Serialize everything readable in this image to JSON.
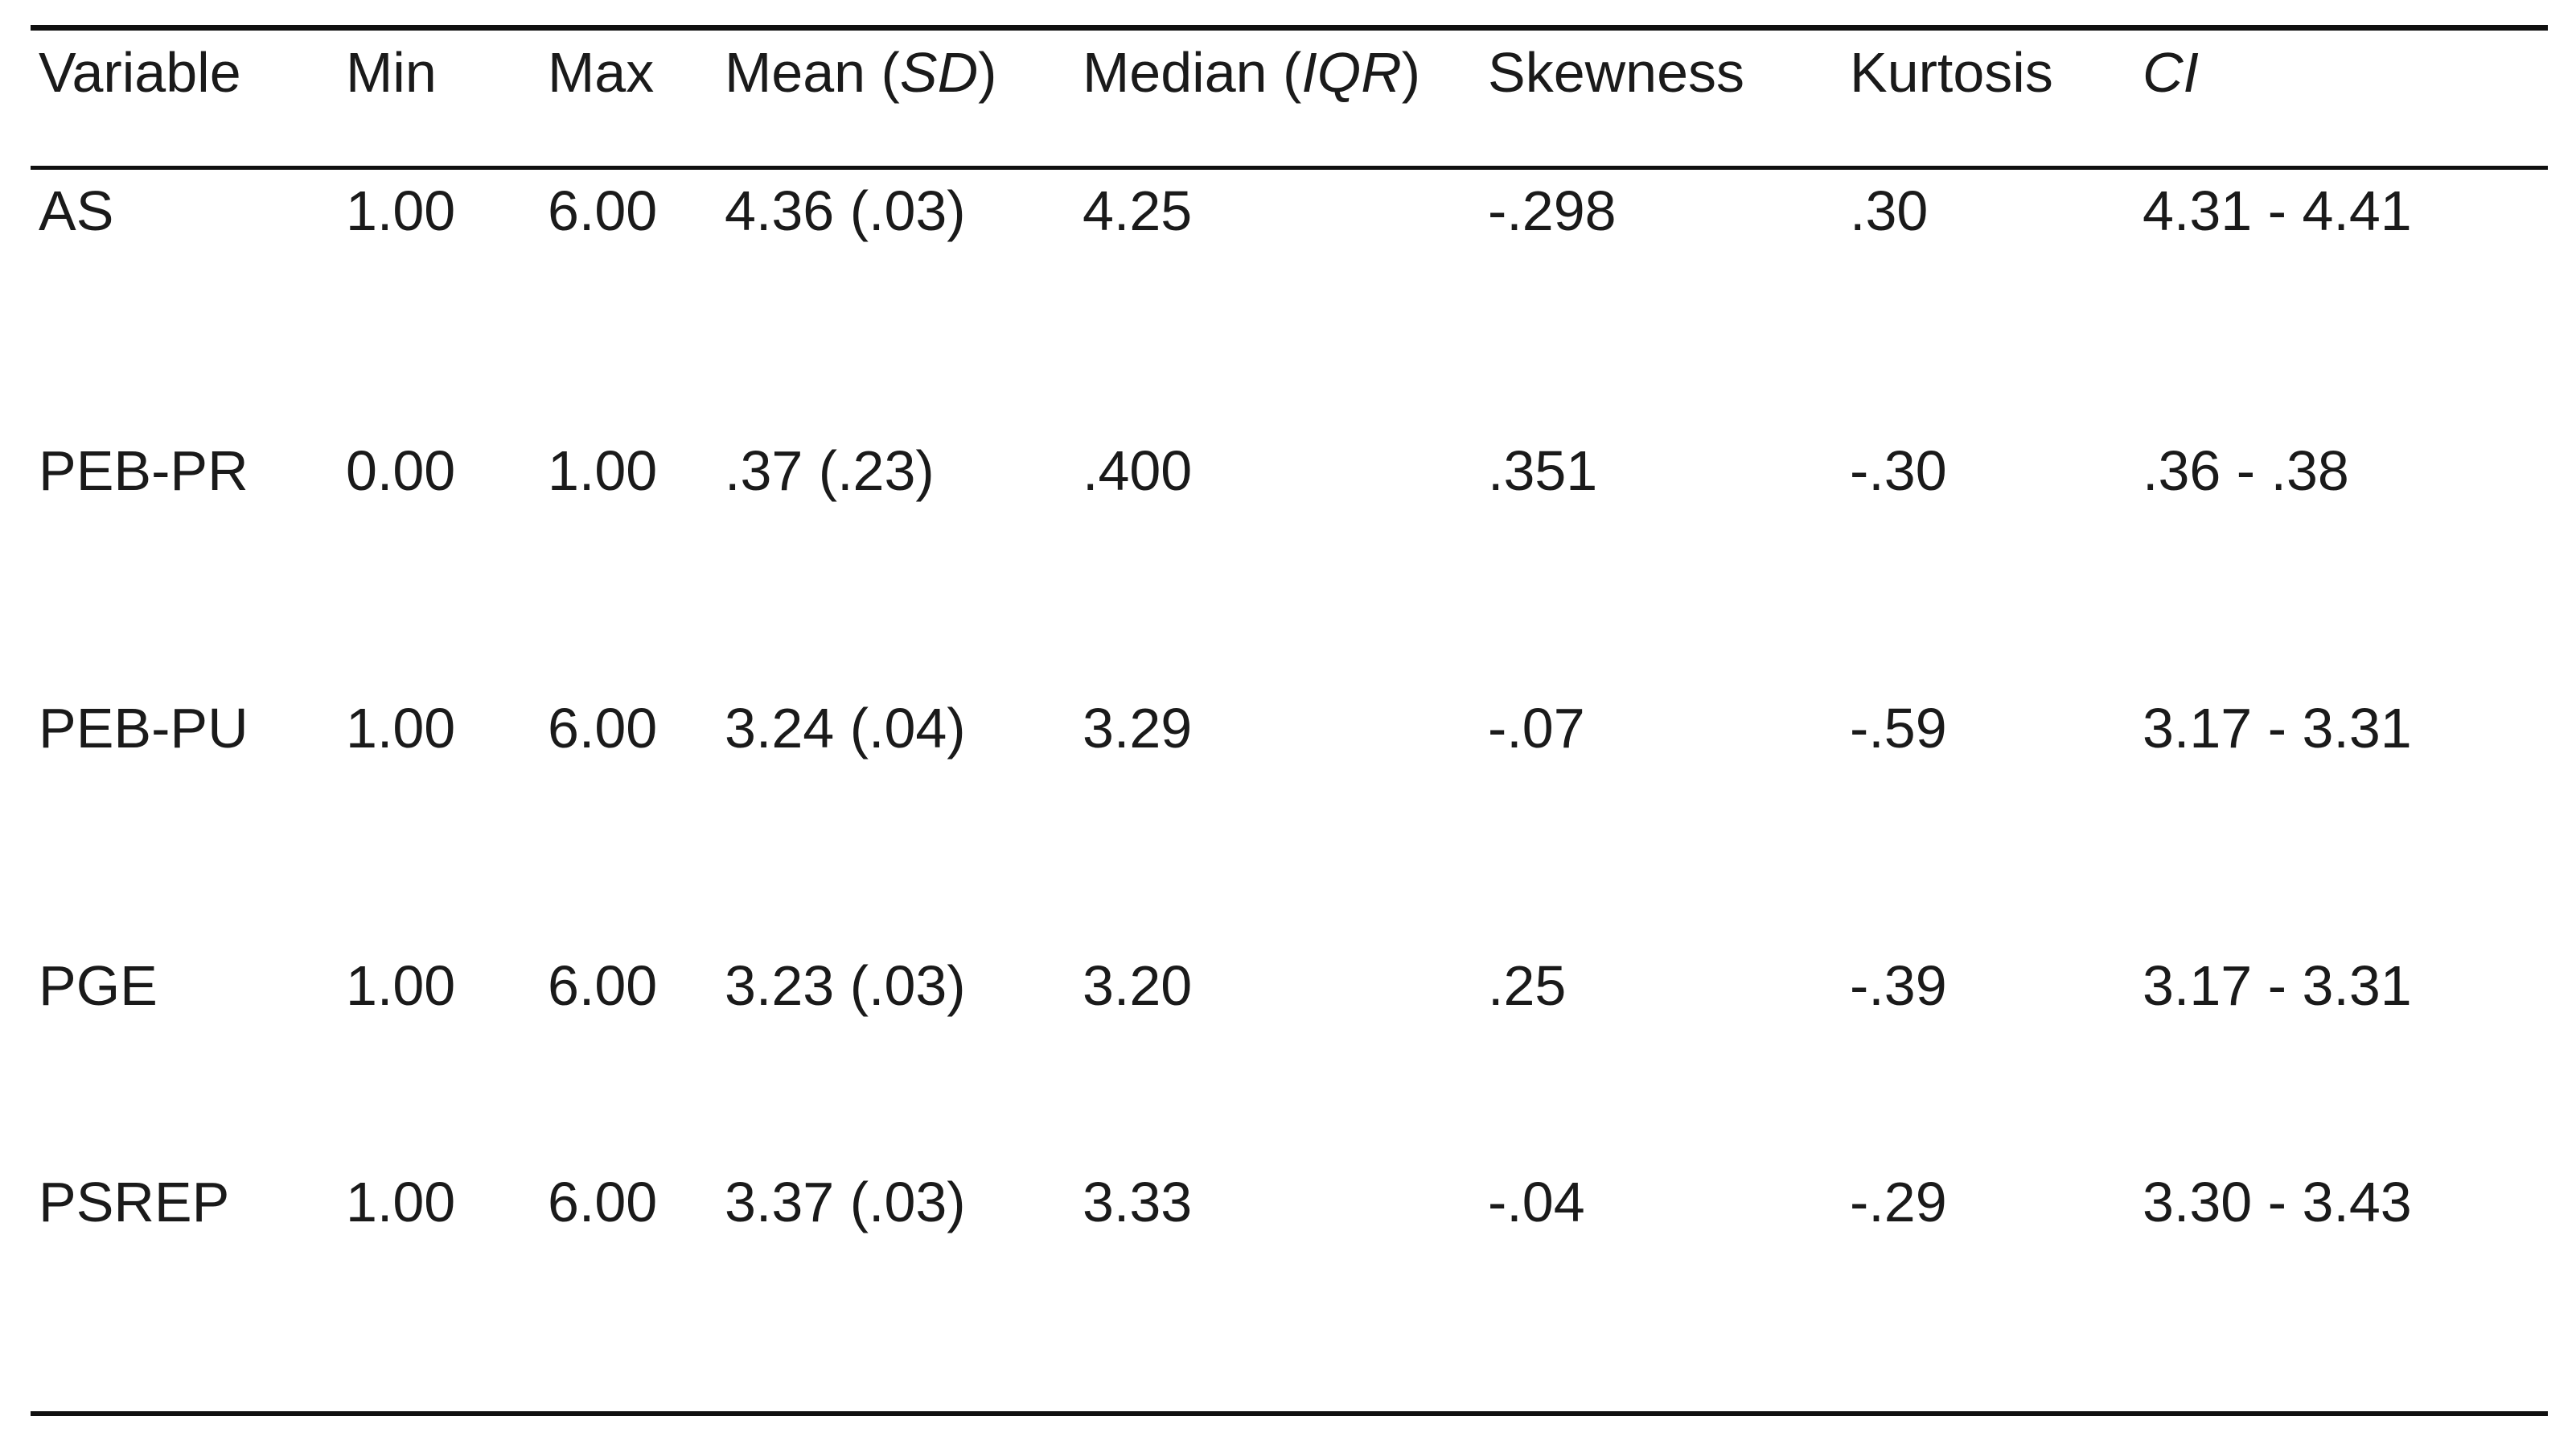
{
  "colors": {
    "background": "#ffffff",
    "text": "#1a1a1a",
    "rule": "#101010"
  },
  "table": {
    "header": {
      "variable": "Variable",
      "min": "Min",
      "max": "Max",
      "mean_prefix": "Mean (",
      "mean_italic": "SD",
      "mean_suffix": ")",
      "median_prefix": "Median (",
      "median_italic": "IQR",
      "median_suffix": ")",
      "skewness": "Skewness",
      "kurtosis": "Kurtosis",
      "ci": "CI"
    },
    "rows": [
      {
        "variable": "AS",
        "min": "1.00",
        "max": "6.00",
        "mean_sd": "4.36 (.03)",
        "median_iqr": "4.25",
        "skewness": "-.298",
        "kurtosis": ".30",
        "ci": "4.31 - 4.41"
      },
      {
        "variable": "PEB-PR",
        "min": "0.00",
        "max": "1.00",
        "mean_sd": ".37 (.23)",
        "median_iqr": ".400",
        "skewness": ".351",
        "kurtosis": "-.30",
        "ci": ".36 - .38"
      },
      {
        "variable": "PEB-PU",
        "min": "1.00",
        "max": "6.00",
        "mean_sd": "3.24 (.04)",
        "median_iqr": "3.29",
        "skewness": "-.07",
        "kurtosis": "-.59",
        "ci": "3.17 - 3.31"
      },
      {
        "variable": "PGE",
        "min": "1.00",
        "max": "6.00",
        "mean_sd": "3.23 (.03)",
        "median_iqr": "3.20",
        "skewness": ".25",
        "kurtosis": "-.39",
        "ci": "3.17 - 3.31"
      },
      {
        "variable": "PSREP",
        "min": "1.00",
        "max": "6.00",
        "mean_sd": "3.37 (.03)",
        "median_iqr": "3.33",
        "skewness": "-.04",
        "kurtosis": "-.29",
        "ci": "3.30 - 3.43"
      }
    ]
  }
}
